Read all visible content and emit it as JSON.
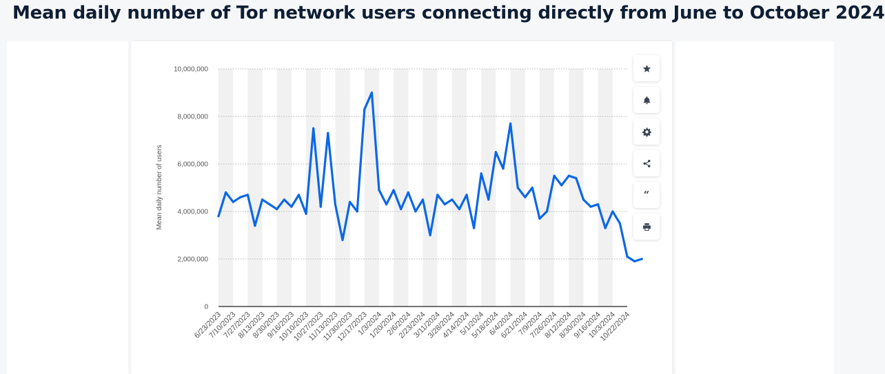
{
  "page": {
    "title": "Mean daily number of Tor network users connecting directly from June to October 2024"
  },
  "tools": [
    {
      "name": "favorite-button",
      "icon": "star-icon"
    },
    {
      "name": "notification-button",
      "icon": "bell-icon"
    },
    {
      "name": "settings-button",
      "icon": "gear-icon"
    },
    {
      "name": "share-button",
      "icon": "share-icon"
    },
    {
      "name": "cite-button",
      "icon": "quote-icon"
    },
    {
      "name": "print-button",
      "icon": "printer-icon"
    }
  ],
  "chart_data": {
    "type": "line",
    "ylabel": "Mean daily number of users",
    "xlabel": "",
    "ylim": [
      0,
      10000000
    ],
    "yticks": [
      0,
      2000000,
      4000000,
      6000000,
      8000000,
      10000000
    ],
    "ytick_labels": [
      "0",
      "2,000,000",
      "4,000,000",
      "6,000,000",
      "8,000,000",
      "10,000,000"
    ],
    "xtick_labels": [
      "6/23/2023",
      "7/10/2023",
      "7/27/2023",
      "8/13/2023",
      "8/30/2023",
      "9/16/2023",
      "10/10/2023",
      "10/27/2023",
      "11/13/2023",
      "11/30/2023",
      "12/17/2023",
      "1/3/2024",
      "1/20/2024",
      "2/6/2024",
      "2/23/2024",
      "3/11/2024",
      "3/28/2024",
      "4/14/2024",
      "5/1/2024",
      "5/18/2024",
      "6/4/2024",
      "6/21/2024",
      "7/9/2024",
      "7/26/2024",
      "8/12/2024",
      "8/30/2024",
      "9/16/2024",
      "10/3/2024",
      "10/22/2024"
    ],
    "grid": "horizontal dotted",
    "line_color": "#0b67e6",
    "series": [
      {
        "x": [
          0,
          0.5,
          1,
          1.5,
          2,
          2.5,
          3,
          3.5,
          4,
          4.5,
          5,
          5.5,
          6,
          6.5,
          7,
          7.5,
          8,
          8.5,
          9,
          9.5,
          10,
          10.5,
          11,
          11.5,
          12,
          12.5,
          13,
          13.5,
          14,
          14.5,
          15,
          15.5,
          16,
          16.5,
          17,
          17.5,
          18,
          18.5,
          19,
          19.5,
          20,
          20.5,
          21,
          21.5,
          22,
          22.5,
          23,
          23.5,
          24,
          24.5,
          25,
          25.5,
          26,
          26.5,
          27,
          27.5,
          28,
          28.5,
          29
        ],
        "values": [
          3800000,
          4800000,
          4400000,
          4600000,
          4700000,
          3400000,
          4500000,
          4300000,
          4100000,
          4500000,
          4200000,
          4700000,
          3900000,
          7500000,
          4200000,
          7300000,
          4300000,
          2800000,
          4400000,
          4000000,
          8300000,
          9000000,
          4900000,
          4300000,
          4900000,
          4100000,
          4800000,
          4000000,
          4500000,
          3000000,
          4700000,
          4300000,
          4500000,
          4100000,
          4700000,
          3300000,
          5600000,
          4500000,
          6500000,
          5800000,
          7700000,
          5000000,
          4600000,
          5000000,
          3700000,
          4000000,
          5500000,
          5100000,
          5500000,
          5400000,
          4500000,
          4200000,
          4300000,
          3300000,
          4000000,
          3500000,
          2100000,
          1900000,
          2000000
        ]
      }
    ]
  }
}
